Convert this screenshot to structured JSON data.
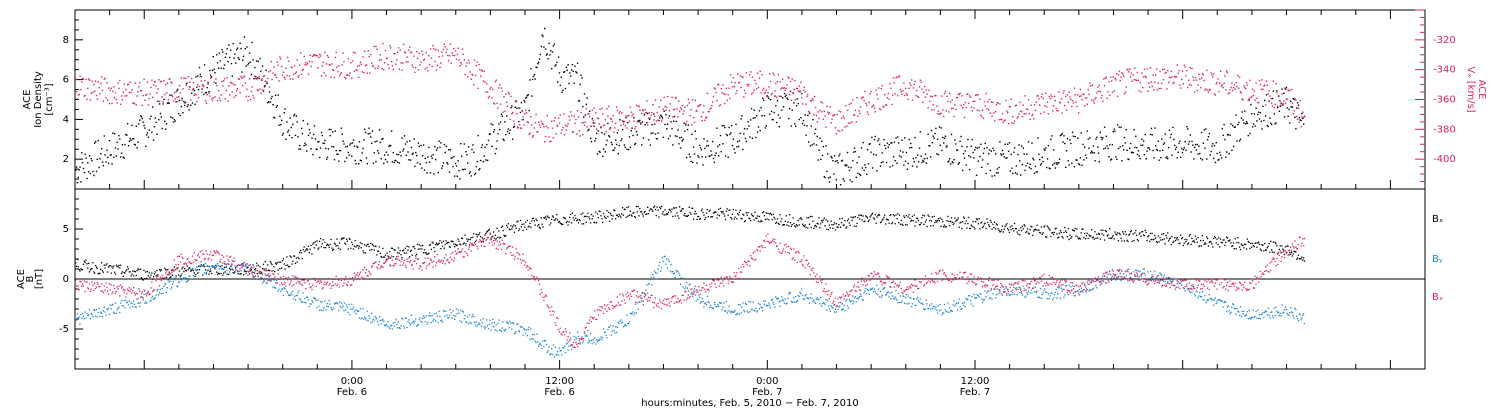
{
  "colors": {
    "black": "#000000",
    "pink": "#e0245e",
    "blue": "#1c86d8"
  },
  "chart_data": [
    {
      "type": "scatter",
      "panel": "top",
      "ylabel_left": [
        "ACE",
        "Ion Density",
        "[cm⁻³]"
      ],
      "ylabel_right": [
        "ACE",
        "Vₓ [km/s]"
      ],
      "y_left_ticks": [
        "2",
        "4",
        "6",
        "8"
      ],
      "y_left_range": [
        0.5,
        9.5
      ],
      "y_right_ticks": [
        "-320",
        "-340",
        "-360",
        "-380",
        "-400"
      ],
      "y_right_range": [
        -420,
        -300
      ],
      "x_hours_range": [
        -16,
        62
      ],
      "series": [
        {
          "color": "#000000",
          "axis": "left",
          "x": [
            -16,
            -14,
            -12,
            -10,
            -8,
            -6,
            -5,
            -4,
            -3,
            -2,
            0,
            2,
            4,
            6,
            7,
            8,
            10,
            11,
            12,
            13,
            14,
            16,
            18,
            20,
            22,
            24,
            26,
            27,
            28,
            30,
            32,
            34,
            36,
            38,
            40,
            42,
            44,
            46,
            48,
            50,
            52,
            54,
            55
          ],
          "y": [
            1.5,
            2.5,
            3.5,
            5.0,
            6.5,
            7.4,
            5.8,
            4.0,
            3.2,
            2.8,
            2.7,
            2.7,
            2.3,
            1.9,
            2.1,
            3.0,
            4.5,
            8.5,
            6.2,
            6.0,
            3.0,
            3.3,
            3.8,
            2.5,
            3.0,
            4.5,
            4.6,
            2.2,
            1.4,
            2.3,
            2.4,
            2.8,
            2.1,
            2.0,
            2.3,
            2.6,
            2.9,
            2.7,
            2.8,
            2.6,
            4.3,
            4.8,
            3.7
          ]
        },
        {
          "color": "#e0245e",
          "axis": "right",
          "x": [
            -16,
            -14,
            -12,
            -10,
            -8,
            -6,
            -4,
            -2,
            0,
            2,
            4,
            6,
            8,
            10,
            11,
            12,
            14,
            16,
            18,
            20,
            22,
            24,
            26,
            27,
            28,
            30,
            32,
            34,
            36,
            38,
            40,
            42,
            44,
            46,
            48,
            50,
            52,
            54,
            55
          ],
          "y": [
            -350,
            -354,
            -355,
            -353,
            -353,
            -352,
            -338,
            -335,
            -337,
            -330,
            -333,
            -330,
            -352,
            -375,
            -380,
            -377,
            -374,
            -372,
            -366,
            -368,
            -350,
            -349,
            -355,
            -368,
            -375,
            -360,
            -350,
            -362,
            -363,
            -368,
            -362,
            -360,
            -350,
            -345,
            -345,
            -348,
            -353,
            -358,
            -372
          ]
        }
      ]
    },
    {
      "type": "scatter",
      "panel": "bottom",
      "ylabel_left": [
        "ACE",
        "B",
        "[nT]"
      ],
      "y_left_ticks": [
        "5",
        "0",
        "-5"
      ],
      "y_range": [
        -9,
        9
      ],
      "x_hours_range": [
        -16,
        62
      ],
      "legend": [
        "Bₓ",
        "Bᵧ",
        "Bₓ"
      ],
      "legend_placement": "right",
      "series": [
        {
          "name": "Bx",
          "color": "#000000",
          "x": [
            -16,
            -14,
            -12,
            -10,
            -8,
            -6,
            -4,
            -2,
            0,
            2,
            4,
            6,
            8,
            10,
            12,
            14,
            16,
            18,
            20,
            22,
            24,
            26,
            28,
            30,
            32,
            34,
            36,
            38,
            40,
            42,
            44,
            46,
            48,
            50,
            52,
            54,
            55
          ],
          "y": [
            1.5,
            1.0,
            0.5,
            0.8,
            1.0,
            1.0,
            1.5,
            3.5,
            3.6,
            2.5,
            3.0,
            3.8,
            4.5,
            5.5,
            6.0,
            6.2,
            6.7,
            6.8,
            6.6,
            6.5,
            6.2,
            5.8,
            5.5,
            6.2,
            6.0,
            5.8,
            5.6,
            5.2,
            4.8,
            4.5,
            4.5,
            4.3,
            4.0,
            3.8,
            3.5,
            3.0,
            2.2
          ]
        },
        {
          "name": "By",
          "color": "#1c86d8",
          "x": [
            -16,
            -14,
            -12,
            -10,
            -8,
            -6,
            -4,
            -2,
            0,
            2,
            4,
            6,
            8,
            10,
            11,
            12,
            13,
            14,
            16,
            18,
            20,
            22,
            24,
            26,
            28,
            30,
            32,
            34,
            36,
            38,
            40,
            42,
            44,
            46,
            48,
            50,
            52,
            54,
            55
          ],
          "y": [
            -4.0,
            -3.0,
            -2.0,
            0.0,
            1.5,
            1.0,
            -1.0,
            -2.5,
            -3.0,
            -4.5,
            -4.0,
            -3.5,
            -4.5,
            -5.0,
            -6.5,
            -7.5,
            -5.8,
            -6.0,
            -4.0,
            2.0,
            -2.0,
            -3.0,
            -2.5,
            -1.5,
            -3.0,
            -1.0,
            -2.0,
            -3.0,
            -2.0,
            -1.0,
            -1.5,
            -1.0,
            0.5,
            0.5,
            -0.5,
            -2.5,
            -3.5,
            -3.0,
            -4.0
          ]
        },
        {
          "name": "Bz",
          "color": "#e0245e",
          "x": [
            -16,
            -14,
            -12,
            -10,
            -8,
            -6,
            -4,
            -2,
            0,
            2,
            4,
            6,
            8,
            10,
            12,
            13,
            14,
            16,
            18,
            20,
            22,
            24,
            26,
            28,
            30,
            32,
            34,
            36,
            38,
            40,
            42,
            44,
            46,
            48,
            50,
            52,
            54,
            55
          ],
          "y": [
            -0.5,
            -1.0,
            -1.5,
            2.0,
            2.5,
            1.0,
            0.0,
            -0.5,
            0.0,
            2.0,
            1.5,
            2.5,
            4.0,
            2.0,
            -5.0,
            -6.5,
            -3.5,
            -1.5,
            -2.5,
            -1.0,
            0.0,
            4.0,
            2.0,
            -2.5,
            0.5,
            -1.0,
            0.5,
            0.0,
            -1.0,
            0.0,
            -1.0,
            0.5,
            0.0,
            -0.5,
            -0.5,
            -0.5,
            3.0,
            4.0
          ]
        }
      ]
    },
    {
      "type": "axis",
      "x_ticks": [
        {
          "time": "0:00",
          "date": "Feb. 6"
        },
        {
          "time": "12:00",
          "date": "Feb. 6"
        },
        {
          "time": "0:00",
          "date": "Feb. 7"
        },
        {
          "time": "12:00",
          "date": "Feb. 7"
        }
      ],
      "xlabel": "hours:minutes, Feb.  5, 2010 − Feb.  7, 2010"
    }
  ]
}
